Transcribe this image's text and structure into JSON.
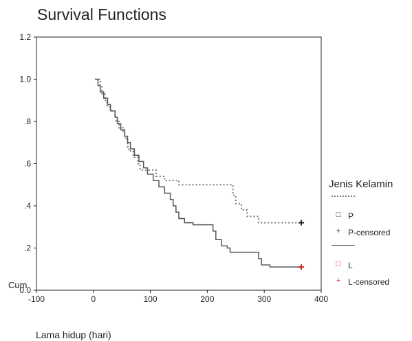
{
  "chart_data": {
    "type": "line",
    "title": "Survival Functions",
    "xlabel": "Lama hidup (hari)",
    "ylabel": "Cum",
    "xlim": [
      -100,
      400
    ],
    "ylim": [
      0.0,
      1.2
    ],
    "x_ticks": [
      "-100",
      "0",
      "100",
      "200",
      "300",
      "400"
    ],
    "y_ticks": [
      "0.0",
      ".2",
      ".4",
      ".6",
      ".8",
      "1.0",
      "1.2"
    ],
    "legend_title": "Jenis Kelamin",
    "legend_position": "right",
    "legend_entries": [
      "P",
      "P-censored",
      "L",
      "L-censored"
    ],
    "series": [
      {
        "name": "P",
        "style": "dotted",
        "color": "#777777",
        "x": [
          3,
          12,
          15,
          20,
          24,
          30,
          38,
          40,
          45,
          52,
          55,
          60,
          62,
          70,
          78,
          82,
          92,
          110,
          125,
          150,
          180,
          200,
          245,
          250,
          260,
          270,
          290,
          365
        ],
        "y": [
          1.0,
          0.97,
          0.93,
          0.9,
          0.87,
          0.85,
          0.82,
          0.8,
          0.77,
          0.75,
          0.72,
          0.68,
          0.66,
          0.63,
          0.6,
          0.57,
          0.57,
          0.54,
          0.52,
          0.5,
          0.5,
          0.5,
          0.45,
          0.41,
          0.38,
          0.35,
          0.32,
          0.32
        ],
        "censored_x": [
          365
        ],
        "censored_y": [
          0.32
        ]
      },
      {
        "name": "L",
        "style": "solid",
        "color": "#555555",
        "x": [
          3,
          8,
          12,
          18,
          25,
          30,
          38,
          42,
          48,
          55,
          60,
          65,
          72,
          80,
          88,
          95,
          105,
          115,
          125,
          135,
          140,
          145,
          150,
          160,
          175,
          210,
          215,
          225,
          235,
          240,
          290,
          295,
          310,
          365
        ],
        "y": [
          1.0,
          0.97,
          0.94,
          0.91,
          0.88,
          0.85,
          0.82,
          0.79,
          0.76,
          0.73,
          0.7,
          0.67,
          0.64,
          0.61,
          0.58,
          0.55,
          0.52,
          0.49,
          0.46,
          0.43,
          0.4,
          0.37,
          0.34,
          0.32,
          0.31,
          0.28,
          0.24,
          0.21,
          0.2,
          0.18,
          0.15,
          0.12,
          0.11,
          0.11
        ],
        "censored_x": [
          365
        ],
        "censored_y": [
          0.11
        ]
      }
    ],
    "colors": {
      "p_censor": "#222222",
      "l_symbol": "#cc2222",
      "axis": "#222222"
    }
  }
}
